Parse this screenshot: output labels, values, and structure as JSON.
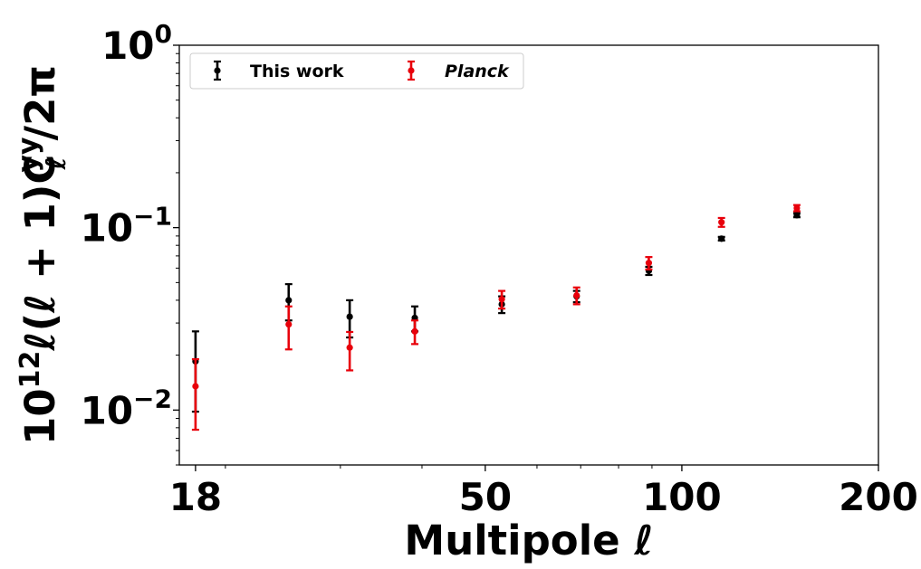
{
  "chart_data": {
    "type": "scatter",
    "title": "",
    "xlabel": "Multipole ℓ",
    "ylabel": {
      "prefix": "10",
      "prefix_sup": "12",
      "main": "ℓ(ℓ + 1)C",
      "sub": "ℓ",
      "sup": "yy",
      "suffix": "/2π"
    },
    "xscale": "log",
    "yscale": "log",
    "xlim": [
      17,
      200
    ],
    "ylim": [
      0.005,
      1
    ],
    "xticks": [
      {
        "value": 18,
        "label": "18"
      },
      {
        "value": 50,
        "label": "50"
      },
      {
        "value": 100,
        "label": "100"
      },
      {
        "value": 200,
        "label": "200"
      }
    ],
    "yticks": [
      {
        "value": 0.01,
        "base": "10",
        "exp": "−2"
      },
      {
        "value": 0.1,
        "base": "10",
        "exp": "−1"
      },
      {
        "value": 1,
        "base": "10",
        "exp": "0"
      }
    ],
    "grid": false,
    "legend_position": "top-left",
    "series": [
      {
        "name": "This work",
        "color": "#000000",
        "label_style": "bold",
        "points": [
          {
            "x": 18,
            "y": 0.0185,
            "ylo": 0.0098,
            "yhi": 0.027
          },
          {
            "x": 25,
            "y": 0.04,
            "ylo": 0.031,
            "yhi": 0.049
          },
          {
            "x": 31,
            "y": 0.0325,
            "ylo": 0.025,
            "yhi": 0.04
          },
          {
            "x": 39,
            "y": 0.032,
            "ylo": 0.027,
            "yhi": 0.037
          },
          {
            "x": 53,
            "y": 0.038,
            "ylo": 0.034,
            "yhi": 0.042
          },
          {
            "x": 69,
            "y": 0.042,
            "ylo": 0.039,
            "yhi": 0.045
          },
          {
            "x": 89,
            "y": 0.058,
            "ylo": 0.055,
            "yhi": 0.061
          },
          {
            "x": 115,
            "y": 0.087,
            "ylo": 0.085,
            "yhi": 0.089
          },
          {
            "x": 150,
            "y": 0.117,
            "ylo": 0.114,
            "yhi": 0.12
          }
        ]
      },
      {
        "name": "Planck",
        "color": "#e8000b",
        "label_style": "bold-italic",
        "points": [
          {
            "x": 18,
            "y": 0.0135,
            "ylo": 0.0078,
            "yhi": 0.019
          },
          {
            "x": 25,
            "y": 0.0295,
            "ylo": 0.0215,
            "yhi": 0.037
          },
          {
            "x": 31,
            "y": 0.022,
            "ylo": 0.0165,
            "yhi": 0.0268
          },
          {
            "x": 39,
            "y": 0.027,
            "ylo": 0.023,
            "yhi": 0.031
          },
          {
            "x": 53,
            "y": 0.0405,
            "ylo": 0.036,
            "yhi": 0.045
          },
          {
            "x": 69,
            "y": 0.0425,
            "ylo": 0.038,
            "yhi": 0.047
          },
          {
            "x": 89,
            "y": 0.064,
            "ylo": 0.059,
            "yhi": 0.069
          },
          {
            "x": 115,
            "y": 0.107,
            "ylo": 0.101,
            "yhi": 0.113
          },
          {
            "x": 150,
            "y": 0.128,
            "ylo": 0.123,
            "yhi": 0.133
          }
        ]
      }
    ]
  }
}
